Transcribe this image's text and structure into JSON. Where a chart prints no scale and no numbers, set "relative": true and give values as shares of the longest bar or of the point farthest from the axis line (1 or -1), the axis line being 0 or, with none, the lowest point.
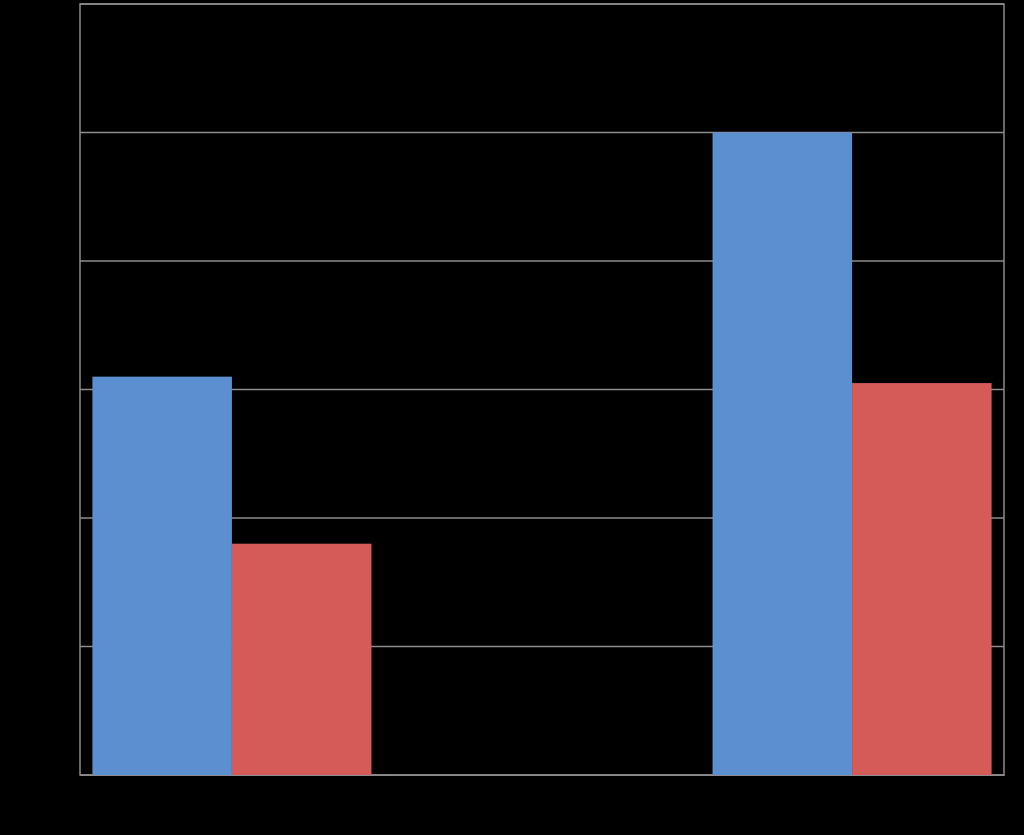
{
  "chart_data": {
    "type": "bar",
    "relative": true,
    "categories": [
      null,
      null
    ],
    "grid": true,
    "series": [
      {
        "color": "#5b8fd0",
        "values": [
          0.62,
          1
        ]
      },
      {
        "color": "#d45b57",
        "values": [
          0.36,
          0.61
        ]
      }
    ]
  }
}
